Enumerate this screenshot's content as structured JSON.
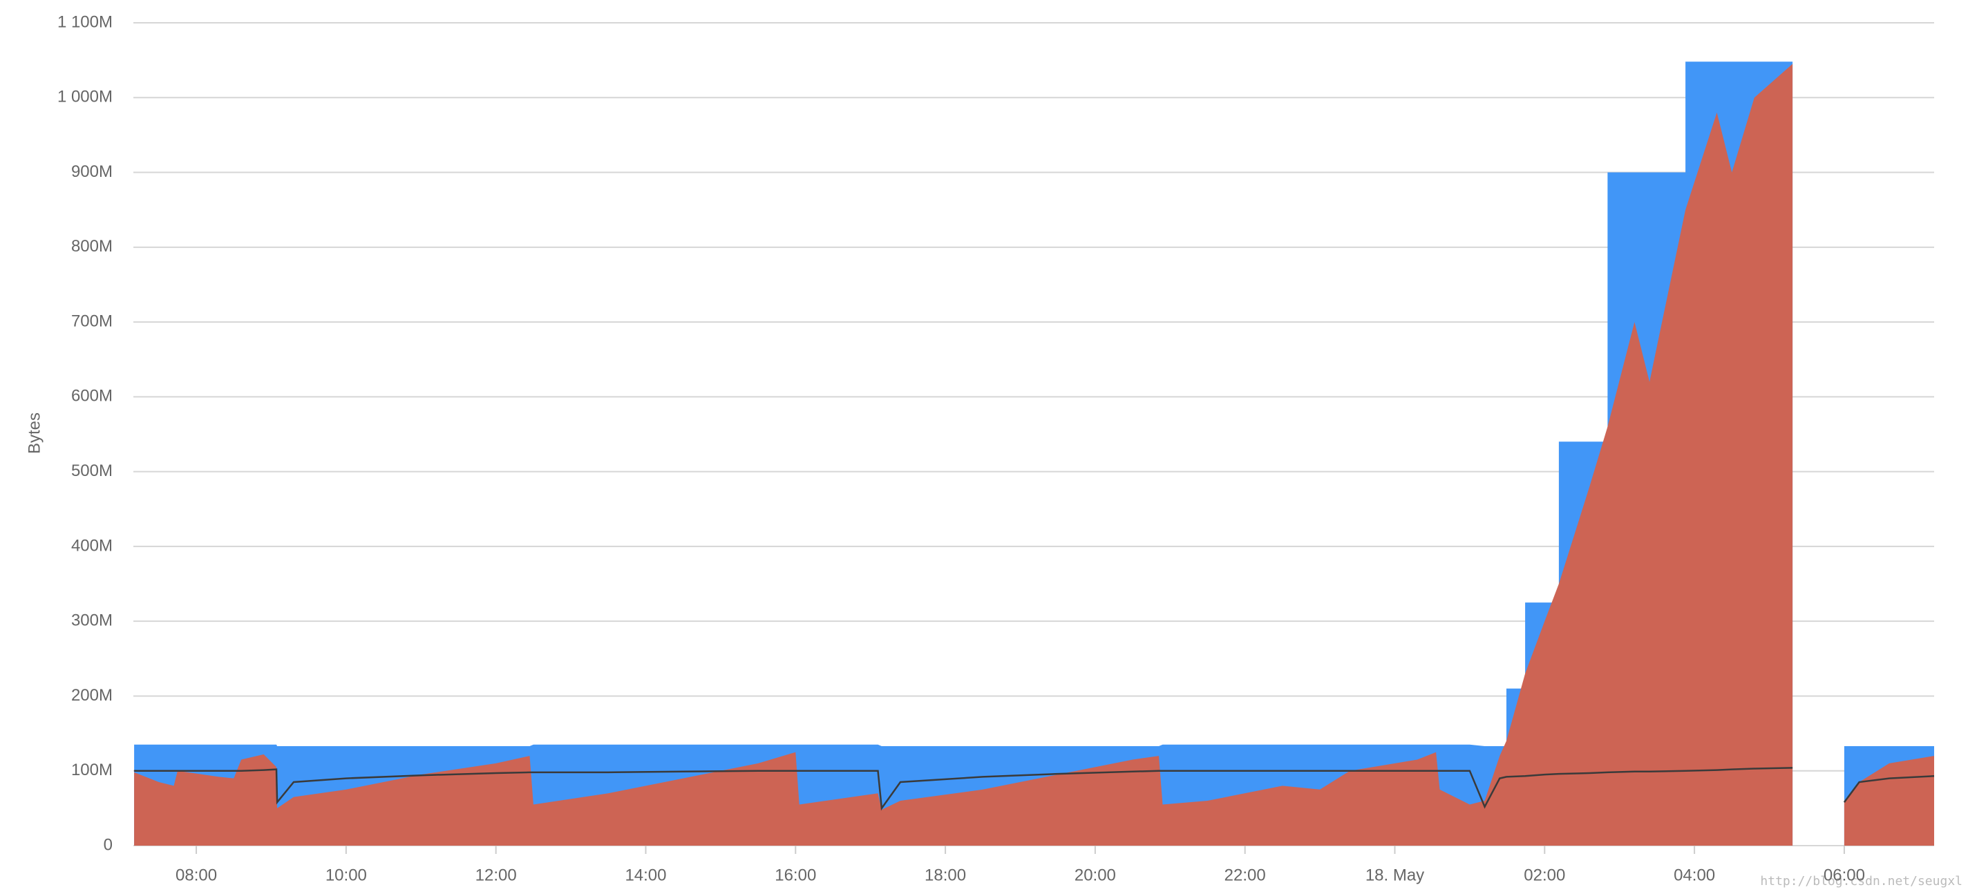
{
  "chart_data": {
    "type": "area",
    "y_label": "Bytes",
    "watermark": "http://blog.csdn.net/seugxl",
    "x": [
      7.17,
      7.5,
      7.7,
      7.75,
      8.3,
      8.5,
      8.6,
      8.9,
      9.07,
      9.08,
      9.3,
      10.0,
      11.0,
      12.0,
      12.45,
      12.5,
      13.5,
      14.5,
      15.5,
      16.0,
      16.05,
      17.1,
      17.15,
      17.4,
      18.5,
      19.5,
      20.5,
      20.85,
      20.9,
      21.5,
      22.5,
      23.0,
      23.4,
      24.3,
      24.55,
      24.6,
      25.0,
      25.2,
      25.4,
      25.49,
      25.49,
      25.74,
      25.74,
      26.0,
      26.19,
      26.19,
      26.6,
      26.84,
      26.84,
      27.2,
      27.4,
      27.88,
      27.88,
      28.3,
      28.5,
      28.8,
      29.31,
      29.6,
      30.0,
      30.2,
      30.6,
      31.2
    ],
    "series": [
      {
        "color": "#4196f7",
        "style": "area",
        "values": [
          135000000,
          135000000,
          135000000,
          135000000,
          135000000,
          135000000,
          135000000,
          135000000,
          135000000,
          133000000,
          133000000,
          133000000,
          133000000,
          133000000,
          133000000,
          135000000,
          135000000,
          135000000,
          135000000,
          135000000,
          135000000,
          135000000,
          133000000,
          133000000,
          133000000,
          133000000,
          133000000,
          133000000,
          135000000,
          135000000,
          135000000,
          135000000,
          135000000,
          135000000,
          135000000,
          135000000,
          135000000,
          133000000,
          133000000,
          133000000,
          210000000,
          210000000,
          325000000,
          325000000,
          325000000,
          540000000,
          540000000,
          540000000,
          900000000,
          900000000,
          900000000,
          900000000,
          1048000000,
          1048000000,
          1048000000,
          1048000000,
          1048000000,
          null,
          133000000,
          133000000,
          133000000,
          133000000
        ]
      },
      {
        "color": "#cd6454",
        "style": "area",
        "values": [
          98000000,
          85000000,
          80000000,
          100000000,
          92000000,
          90000000,
          115000000,
          122000000,
          105000000,
          50000000,
          65000000,
          75000000,
          95000000,
          110000000,
          120000000,
          55000000,
          70000000,
          90000000,
          110000000,
          125000000,
          55000000,
          70000000,
          48000000,
          60000000,
          75000000,
          95000000,
          115000000,
          120000000,
          55000000,
          60000000,
          80000000,
          75000000,
          100000000,
          115000000,
          125000000,
          75000000,
          55000000,
          60000000,
          120000000,
          140000000,
          140000000,
          230000000,
          230000000,
          300000000,
          350000000,
          350000000,
          480000000,
          560000000,
          560000000,
          700000000,
          620000000,
          850000000,
          850000000,
          980000000,
          900000000,
          1000000000,
          1045000000,
          null,
          60000000,
          85000000,
          110000000,
          120000000
        ]
      },
      {
        "color": "#3a3a3a",
        "style": "line",
        "values": [
          100000000,
          100000000,
          100000000,
          100000000,
          100000000,
          100000000,
          100000000,
          101000000,
          102000000,
          58000000,
          85000000,
          90000000,
          94000000,
          97000000,
          98000000,
          98000000,
          98000000,
          99000000,
          100000000,
          100000000,
          100000000,
          100000000,
          50000000,
          85000000,
          92000000,
          96000000,
          99000000,
          100000000,
          100000000,
          100000000,
          100000000,
          100000000,
          100000000,
          100000000,
          100000000,
          100000000,
          100000000,
          52000000,
          90000000,
          92000000,
          92000000,
          93000000,
          93000000,
          95000000,
          96000000,
          96000000,
          97000000,
          98000000,
          98000000,
          99000000,
          99000000,
          100000000,
          100000000,
          101000000,
          102000000,
          103000000,
          104000000,
          null,
          58000000,
          85000000,
          90000000,
          93000000
        ]
      }
    ],
    "xlim": [
      7.16,
      31.2
    ],
    "xticks": [
      {
        "value": 8,
        "label": "08:00"
      },
      {
        "value": 10,
        "label": "10:00"
      },
      {
        "value": 12,
        "label": "12:00"
      },
      {
        "value": 14,
        "label": "14:00"
      },
      {
        "value": 16,
        "label": "16:00"
      },
      {
        "value": 18,
        "label": "18:00"
      },
      {
        "value": 20,
        "label": "20:00"
      },
      {
        "value": 22,
        "label": "22:00"
      },
      {
        "value": 24,
        "label": "18. May"
      },
      {
        "value": 26,
        "label": "02:00"
      },
      {
        "value": 28,
        "label": "04:00"
      },
      {
        "value": 30,
        "label": "06:00"
      }
    ],
    "ylim": [
      0,
      1100000000
    ],
    "yticks": [
      0,
      {
        "value": 100000000,
        "label": "100M"
      },
      {
        "value": 200000000,
        "label": "200M"
      },
      {
        "value": 300000000,
        "label": "300M"
      },
      {
        "value": 400000000,
        "label": "400M"
      },
      {
        "value": 500000000,
        "label": "500M"
      },
      {
        "value": 600000000,
        "label": "600M"
      },
      {
        "value": 700000000,
        "label": "700M"
      },
      {
        "value": 800000000,
        "label": "800M"
      },
      {
        "value": 900000000,
        "label": "900M"
      },
      {
        "value": 1000000000,
        "label": "1 000M"
      },
      {
        "value": 1100000000,
        "label": "1 100M"
      }
    ],
    "grid": true
  }
}
